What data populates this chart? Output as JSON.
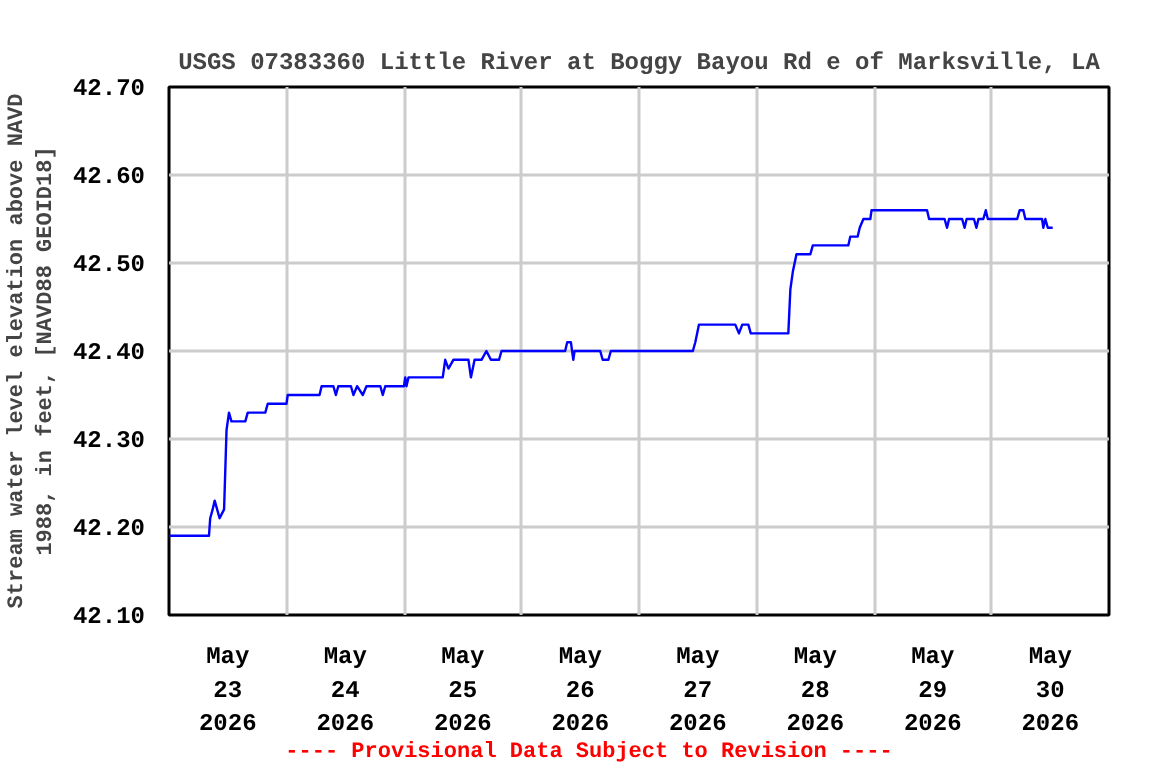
{
  "chart_data": {
    "type": "line",
    "title": "USGS 07383360 Little River at Boggy Bayou Rd e of Marksville, LA",
    "ylabel": "Stream water level elevation above NAVD\n1988, in feet, [NAVD88 GEOID18]",
    "annotations": [
      "---- Provisional Data Subject to Revision ----"
    ],
    "xlim": [
      "2026-05-23T00:00",
      "2026-05-31T00:00"
    ],
    "xticks": [
      {
        "value": "2026-05-23T12:00",
        "label": "May\n23\n2026"
      },
      {
        "value": "2026-05-24T12:00",
        "label": "May\n24\n2026"
      },
      {
        "value": "2026-05-25T12:00",
        "label": "May\n25\n2026"
      },
      {
        "value": "2026-05-26T12:00",
        "label": "May\n26\n2026"
      },
      {
        "value": "2026-05-27T12:00",
        "label": "May\n27\n2026"
      },
      {
        "value": "2026-05-28T12:00",
        "label": "May\n28\n2026"
      },
      {
        "value": "2026-05-29T12:00",
        "label": "May\n29\n2026"
      },
      {
        "value": "2026-05-30T12:00",
        "label": "May\n30\n2026"
      },
      {
        "value": "2026-05-24T00:00",
        "label": null
      },
      {
        "value": "2026-05-25T00:00",
        "label": null
      },
      {
        "value": "2026-05-26T00:00",
        "label": null
      },
      {
        "value": "2026-05-27T00:00",
        "label": null
      },
      {
        "value": "2026-05-28T00:00",
        "label": null
      },
      {
        "value": "2026-05-29T00:00",
        "label": null
      },
      {
        "value": "2026-05-30T00:00",
        "label": null
      }
    ],
    "ylim": [
      42.1,
      42.7
    ],
    "yticks": [
      {
        "value": 42.1,
        "label": "42.10"
      },
      {
        "value": 42.2,
        "label": "42.20"
      },
      {
        "value": 42.3,
        "label": "42.30"
      },
      {
        "value": 42.4,
        "label": "42.40"
      },
      {
        "value": 42.5,
        "label": "42.50"
      },
      {
        "value": 42.6,
        "label": "42.60"
      },
      {
        "value": 42.7,
        "label": "42.70"
      }
    ],
    "grid": true,
    "marker": "none",
    "line_style": "solid",
    "series": [
      {
        "color": "#0000ff",
        "x": [
          "2026-05-23T00:00",
          "2026-05-23T08:10",
          "2026-05-23T08:25",
          "2026-05-23T08:55",
          "2026-05-23T09:20",
          "2026-05-23T09:50",
          "2026-05-23T10:20",
          "2026-05-23T11:15",
          "2026-05-23T11:45",
          "2026-05-23T12:15",
          "2026-05-23T12:45",
          "2026-05-23T15:35",
          "2026-05-23T16:05",
          "2026-05-23T19:40",
          "2026-05-23T20:10",
          "2026-05-24T00:00",
          "2026-05-24T00:15",
          "2026-05-24T06:45",
          "2026-05-24T07:10",
          "2026-05-24T09:35",
          "2026-05-24T10:05",
          "2026-05-24T10:35",
          "2026-05-24T13:10",
          "2026-05-24T13:40",
          "2026-05-24T14:25",
          "2026-05-24T15:35",
          "2026-05-24T16:20",
          "2026-05-24T19:10",
          "2026-05-24T19:40",
          "2026-05-24T20:10",
          "2026-05-25T00:00",
          "2026-05-25T00:15",
          "2026-05-25T00:30",
          "2026-05-25T00:55",
          "2026-05-25T07:55",
          "2026-05-25T08:25",
          "2026-05-25T09:05",
          "2026-05-25T10:05",
          "2026-05-25T13:10",
          "2026-05-25T13:40",
          "2026-05-25T14:25",
          "2026-05-25T15:50",
          "2026-05-25T16:50",
          "2026-05-25T17:45",
          "2026-05-25T19:25",
          "2026-05-25T19:55",
          "2026-05-26T08:55",
          "2026-05-26T09:20",
          "2026-05-26T10:05",
          "2026-05-26T10:35",
          "2026-05-26T10:50",
          "2026-05-26T16:05",
          "2026-05-26T16:35",
          "2026-05-26T17:45",
          "2026-05-26T18:15",
          "2026-05-27T11:00",
          "2026-05-27T11:30",
          "2026-05-27T12:15",
          "2026-05-27T19:40",
          "2026-05-27T20:25",
          "2026-05-27T21:05",
          "2026-05-27T22:20",
          "2026-05-27T22:50",
          "2026-05-28T06:30",
          "2026-05-28T06:55",
          "2026-05-28T07:25",
          "2026-05-28T08:10",
          "2026-05-28T11:00",
          "2026-05-28T11:30",
          "2026-05-28T18:45",
          "2026-05-28T19:10",
          "2026-05-28T20:40",
          "2026-05-28T21:05",
          "2026-05-28T21:50",
          "2026-05-28T23:15",
          "2026-05-28T23:30",
          "2026-05-29T10:50",
          "2026-05-29T11:15",
          "2026-05-29T14:25",
          "2026-05-29T14:55",
          "2026-05-29T15:20",
          "2026-05-29T18:00",
          "2026-05-29T18:30",
          "2026-05-29T18:55",
          "2026-05-29T20:25",
          "2026-05-29T20:55",
          "2026-05-29T21:20",
          "2026-05-29T22:20",
          "2026-05-29T22:50",
          "2026-05-29T23:15",
          "2026-05-30T05:15",
          "2026-05-30T05:45",
          "2026-05-30T06:30",
          "2026-05-30T06:55",
          "2026-05-30T10:20",
          "2026-05-30T10:35",
          "2026-05-30T11:00",
          "2026-05-30T11:30",
          "2026-05-30T12:30"
        ],
        "values": [
          42.19,
          42.19,
          42.21,
          42.22,
          42.23,
          42.22,
          42.21,
          42.22,
          42.31,
          42.33,
          42.32,
          42.32,
          42.33,
          42.33,
          42.34,
          42.34,
          42.35,
          42.35,
          42.36,
          42.36,
          42.35,
          42.36,
          42.36,
          42.35,
          42.36,
          42.35,
          42.36,
          42.36,
          42.35,
          42.36,
          42.36,
          42.37,
          42.36,
          42.37,
          42.37,
          42.39,
          42.38,
          42.39,
          42.39,
          42.37,
          42.39,
          42.39,
          42.4,
          42.39,
          42.39,
          42.4,
          42.4,
          42.41,
          42.41,
          42.39,
          42.4,
          42.4,
          42.39,
          42.39,
          42.4,
          42.4,
          42.41,
          42.43,
          42.43,
          42.42,
          42.43,
          42.43,
          42.42,
          42.42,
          42.47,
          42.49,
          42.51,
          42.51,
          42.52,
          42.52,
          42.53,
          42.53,
          42.54,
          42.55,
          42.55,
          42.56,
          42.56,
          42.55,
          42.55,
          42.54,
          42.55,
          42.55,
          42.54,
          42.55,
          42.55,
          42.54,
          42.55,
          42.55,
          42.56,
          42.55,
          42.55,
          42.56,
          42.56,
          42.55,
          42.55,
          42.54,
          42.55,
          42.54,
          42.54
        ]
      }
    ]
  }
}
